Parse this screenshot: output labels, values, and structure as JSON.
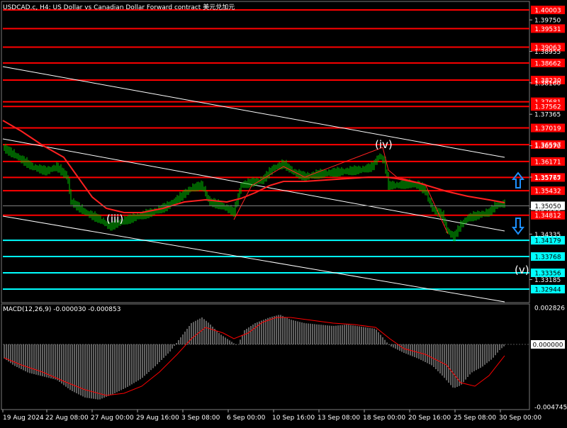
{
  "header": {
    "title": "USDCAD.c, H4:  US Dollar vs Canadian Dollar Forward contract  美元兑加元"
  },
  "price_axis": {
    "plain_labels": [
      "1.39750",
      "1.38955",
      "1.38160",
      "1.37365",
      "1.36570",
      "1.35775",
      "1.34980",
      "1.34335",
      "1.33185"
    ],
    "red_levels": [
      "1.40003",
      "1.39531",
      "1.39063",
      "1.38662",
      "1.38230",
      "1.37681",
      "1.37562",
      "1.37019",
      "1.36597",
      "1.36171",
      "1.35767",
      "1.35432",
      "1.34812"
    ],
    "cyan_levels": [
      "1.34179",
      "1.33768",
      "1.33356",
      "1.32944"
    ],
    "current_price": "1.35050"
  },
  "macd": {
    "label": "MACD(12,26,9) -0.000030 -0.000853",
    "axis_labels": [
      "0.002826",
      "0.000000",
      "-0.004745"
    ]
  },
  "time_axis": {
    "labels": [
      "19 Aug 2024",
      "22 Aug 08:00",
      "27 Aug 00:00",
      "29 Aug 16:00",
      "3 Sep 08:00",
      "6 Sep 00:00",
      "10 Sep 16:00",
      "13 Sep 08:00",
      "18 Sep 00:00",
      "20 Sep 16:00",
      "25 Sep 08:00",
      "30 Sep 00:00"
    ]
  },
  "waves": {
    "iii": "(iii)",
    "iv": "(iv)",
    "v": "(v)"
  },
  "colors": {
    "background": "#000000",
    "candles": "#00c000",
    "red_level": "#ff0000",
    "cyan_level": "#00ffff",
    "ma": "#ff2020",
    "macd_hist": "#c0c0c0",
    "macd_signal": "#ff0000",
    "channel": "#ffffff",
    "arrow": "#1e90ff"
  },
  "icons": {
    "up_arrow": "outlined-up-arrow-icon",
    "down_arrow": "outlined-down-arrow-icon"
  }
}
